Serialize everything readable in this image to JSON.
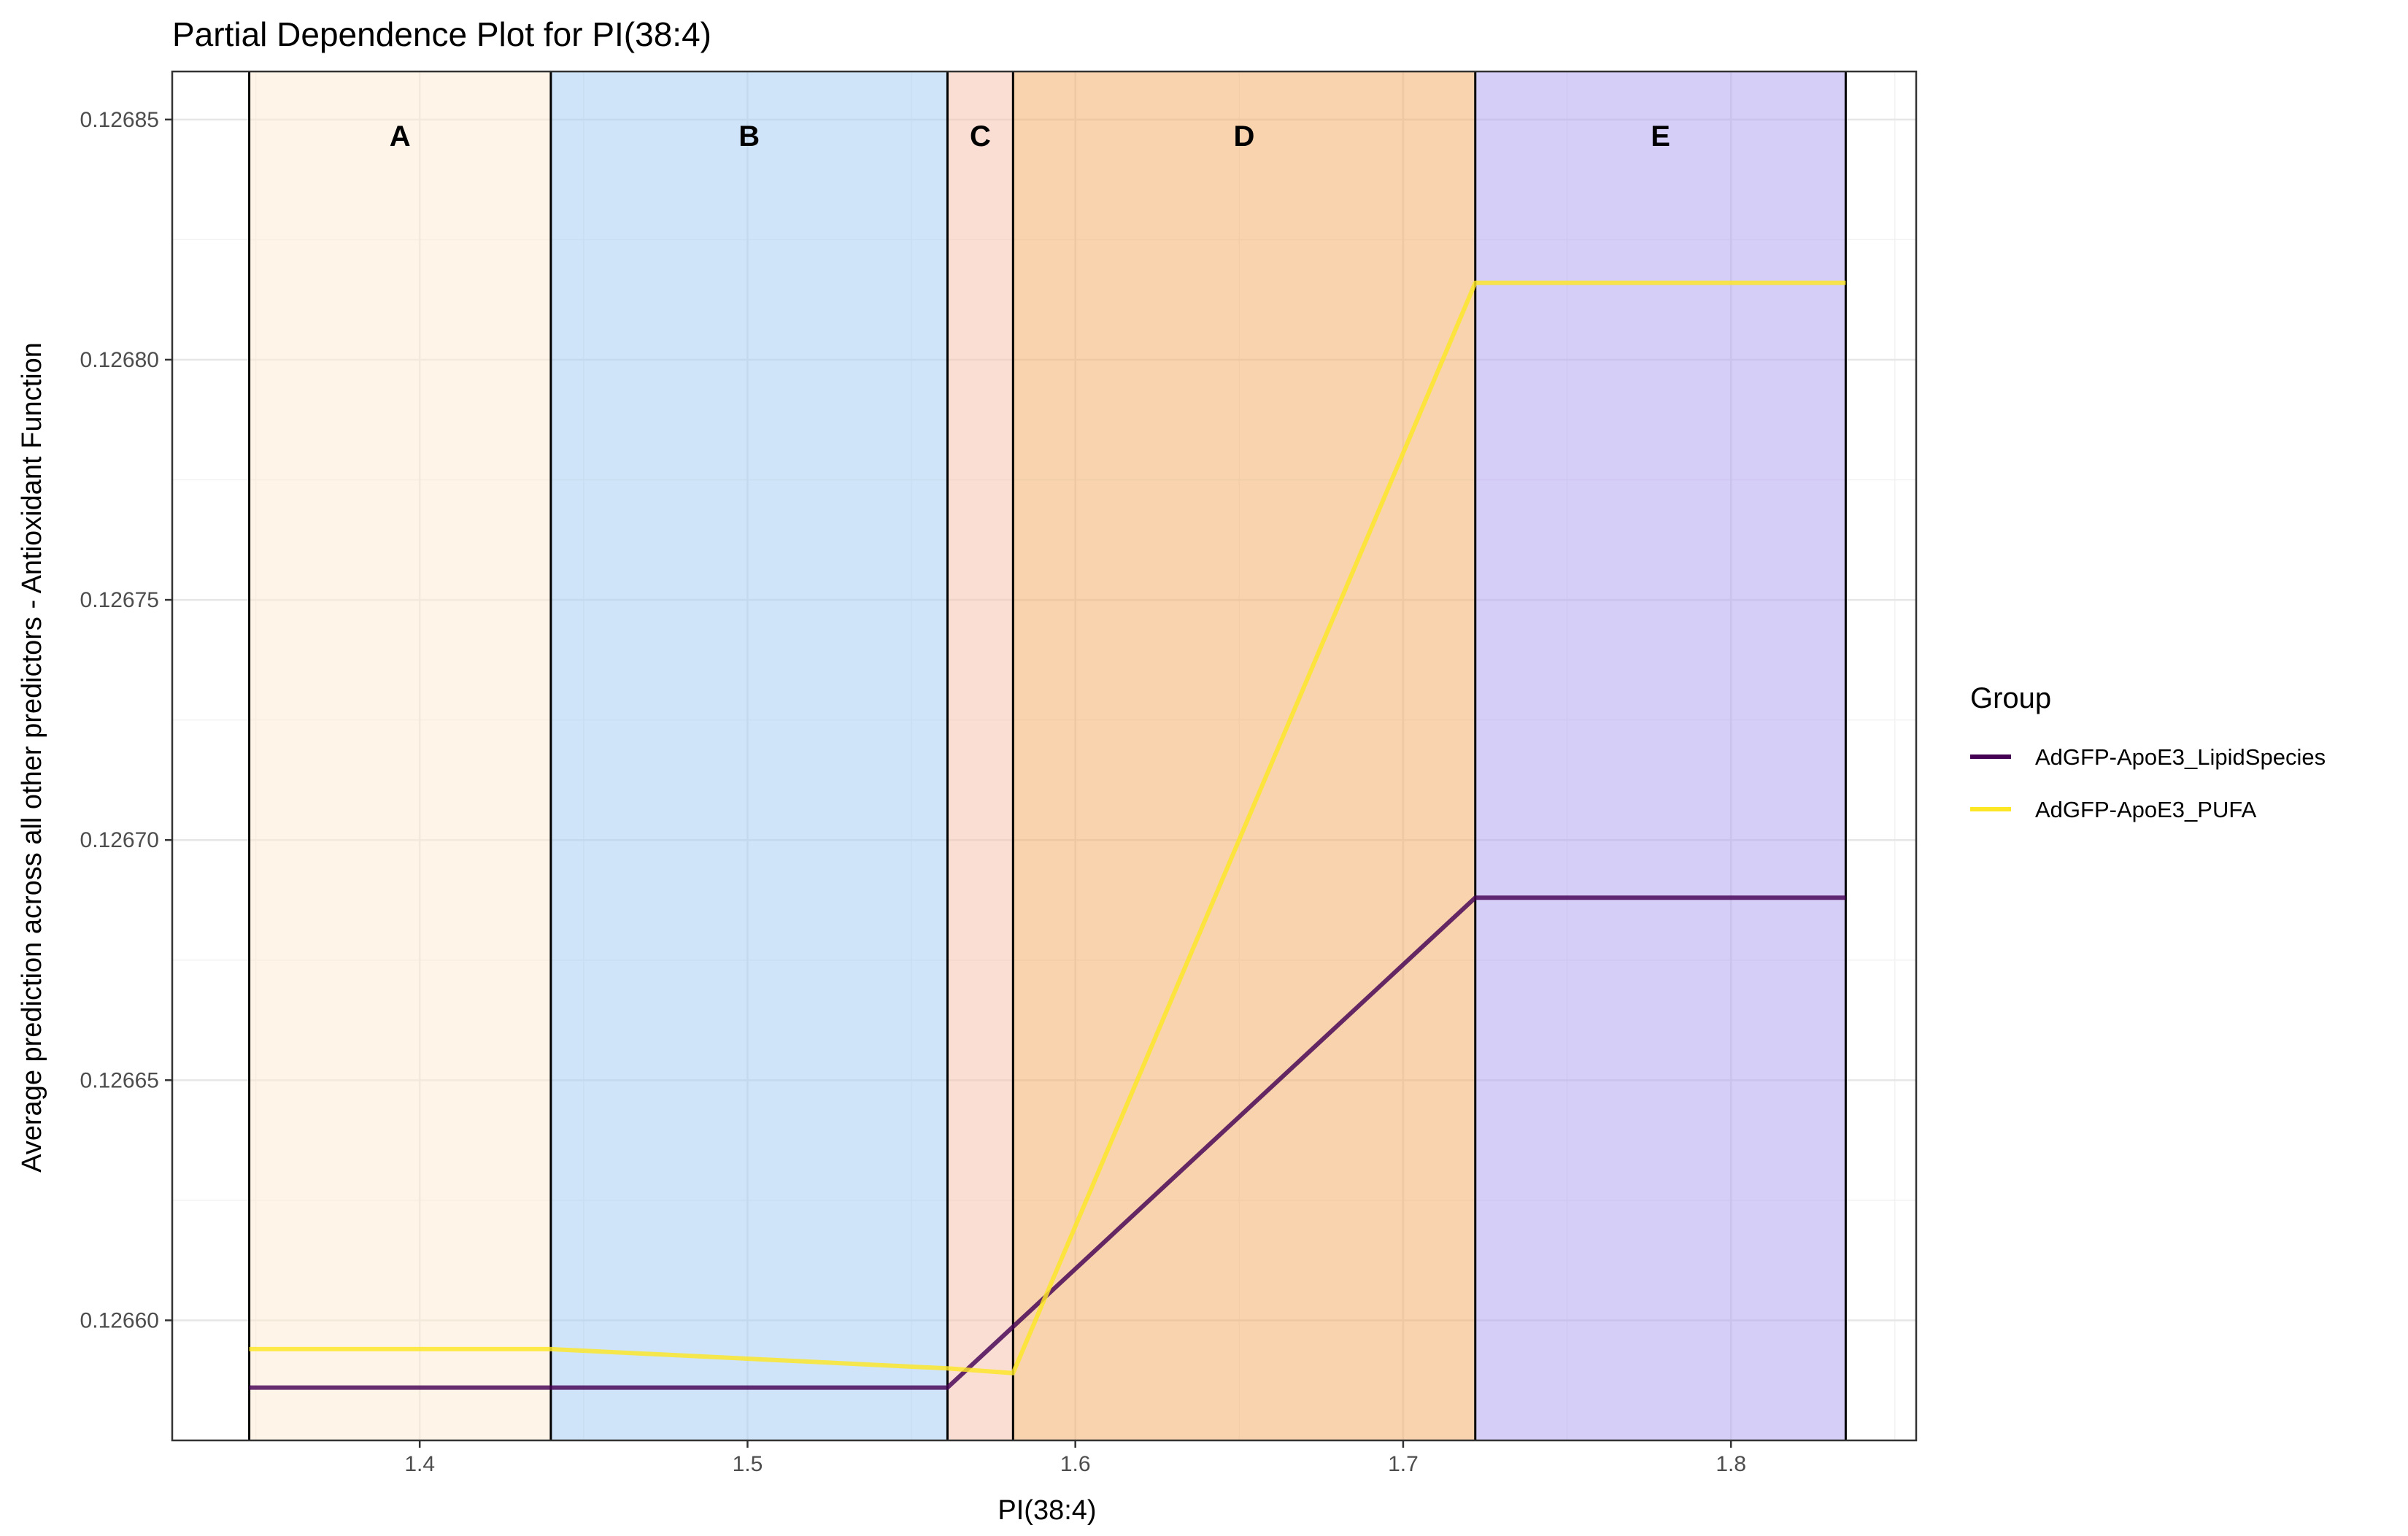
{
  "chart_data": {
    "type": "line",
    "title": "Partial Dependence Plot for PI(38:4)",
    "xlabel": "PI(38:4)",
    "ylabel": "Average prediction across all other predictors - Antioxidant Function",
    "xlim": [
      1.3245,
      1.8565
    ],
    "ylim": [
      0.126575,
      0.12686
    ],
    "x_ticks": [
      1.4,
      1.5,
      1.6,
      1.7,
      1.8
    ],
    "x_tick_labels": [
      "1.4",
      "1.5",
      "1.6",
      "1.7",
      "1.8"
    ],
    "y_ticks": [
      0.1266,
      0.12665,
      0.1267,
      0.12675,
      0.1268,
      0.12685
    ],
    "y_tick_labels": [
      "0.12660",
      "0.12665",
      "0.12670",
      "0.12675",
      "0.12680",
      "0.12685"
    ],
    "grid": true,
    "legend_position": "right",
    "legend_title": "Group",
    "regions": [
      {
        "label": "A",
        "x_start": 1.348,
        "x_end": 1.44,
        "color": "#fdebd3",
        "opacity": 0.55
      },
      {
        "label": "B",
        "x_start": 1.44,
        "x_end": 1.561,
        "color": "#a8cdf3",
        "opacity": 0.55
      },
      {
        "label": "C",
        "x_start": 1.561,
        "x_end": 1.581,
        "color": "#f5c2ae",
        "opacity": 0.55
      },
      {
        "label": "D",
        "x_start": 1.581,
        "x_end": 1.722,
        "color": "#f2ae6a",
        "opacity": 0.55
      },
      {
        "label": "E",
        "x_start": 1.722,
        "x_end": 1.835,
        "color": "#b3a6f0",
        "opacity": 0.55
      }
    ],
    "series": [
      {
        "name": "AdGFP-ApoE3_LipidSpecies",
        "color": "#440154",
        "x": [
          1.348,
          1.44,
          1.561,
          1.722,
          1.835
        ],
        "y": [
          0.126586,
          0.126586,
          0.126586,
          0.126688,
          0.126688
        ]
      },
      {
        "name": "AdGFP-ApoE3_PUFA",
        "color": "#fde725",
        "x": [
          1.348,
          1.44,
          1.561,
          1.581,
          1.722,
          1.835
        ],
        "y": [
          0.126594,
          0.126594,
          0.12659,
          0.126589,
          0.126816,
          0.126816
        ]
      }
    ]
  }
}
